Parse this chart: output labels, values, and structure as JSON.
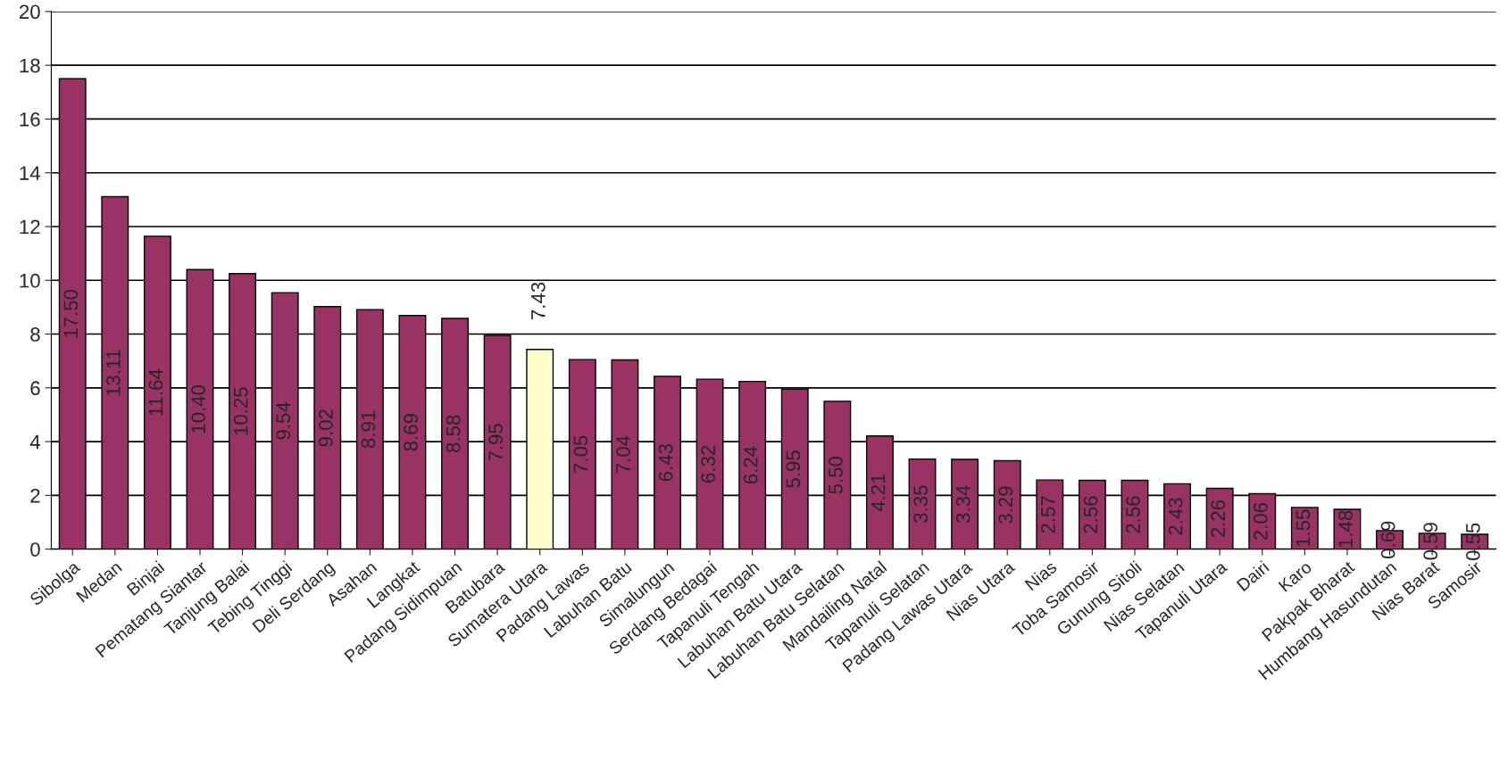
{
  "chart_data": {
    "type": "bar",
    "categories": [
      "Sibolga",
      "Medan",
      "Binjai",
      "Pematang Siantar",
      "Tanjung Balai",
      "Tebing Tinggi",
      "Deli Serdang",
      "Asahan",
      "Langkat",
      "Padang Sidimpuan",
      "Batubara",
      "Sumatera Utara",
      "Padang Lawas",
      "Labuhan Batu",
      "Simalungun",
      "Serdang Bedagai",
      "Tapanuli Tengah",
      "Labuhan Batu Utara",
      "Labuhan Batu Selatan",
      "Mandailing Natal",
      "Tapanuli Selatan",
      "Padang Lawas Utara",
      "Nias Utara",
      "Nias",
      "Toba Samosir",
      "Gunung Sitoli",
      "Nias Selatan",
      "Tapanuli Utara",
      "Dairi",
      "Karo",
      "Pakpak Bharat",
      "Humbang Hasundutan",
      "Nias Barat",
      "Samosir"
    ],
    "values": [
      17.5,
      13.11,
      11.64,
      10.4,
      10.25,
      9.54,
      9.02,
      8.91,
      8.69,
      8.58,
      7.95,
      7.43,
      7.05,
      7.04,
      6.43,
      6.32,
      6.24,
      5.95,
      5.5,
      4.21,
      3.35,
      3.34,
      3.29,
      2.57,
      2.56,
      2.56,
      2.43,
      2.26,
      2.06,
      1.55,
      1.48,
      0.69,
      0.59,
      0.55
    ],
    "value_labels": [
      "17.50",
      "13.11",
      "11.64",
      "10.40",
      "10.25",
      "9.54",
      "9.02",
      "8.91",
      "8.69",
      "8.58",
      "7.95",
      "7.43",
      "7.05",
      "7.04",
      "6.43",
      "6.32",
      "6.24",
      "5.95",
      "5.50",
      "4.21",
      "3.35",
      "3.34",
      "3.29",
      "2.57",
      "2.56",
      "2.56",
      "2.43",
      "2.26",
      "2.06",
      "1.55",
      "1.48",
      "0.69",
      "0.59",
      "0.55"
    ],
    "colors": [
      "#993366",
      "#993366",
      "#993366",
      "#993366",
      "#993366",
      "#993366",
      "#993366",
      "#993366",
      "#993366",
      "#993366",
      "#993366",
      "#ffffcc",
      "#993366",
      "#993366",
      "#993366",
      "#993366",
      "#993366",
      "#993366",
      "#993366",
      "#993366",
      "#993366",
      "#993366",
      "#993366",
      "#993366",
      "#993366",
      "#993366",
      "#993366",
      "#993366",
      "#993366",
      "#993366",
      "#993366",
      "#993366",
      "#993366",
      "#993366"
    ],
    "ylim": [
      0,
      20
    ],
    "yticks": [
      0,
      2,
      4,
      6,
      8,
      10,
      12,
      14,
      16,
      18,
      20
    ],
    "grid": "y",
    "legend": false
  }
}
